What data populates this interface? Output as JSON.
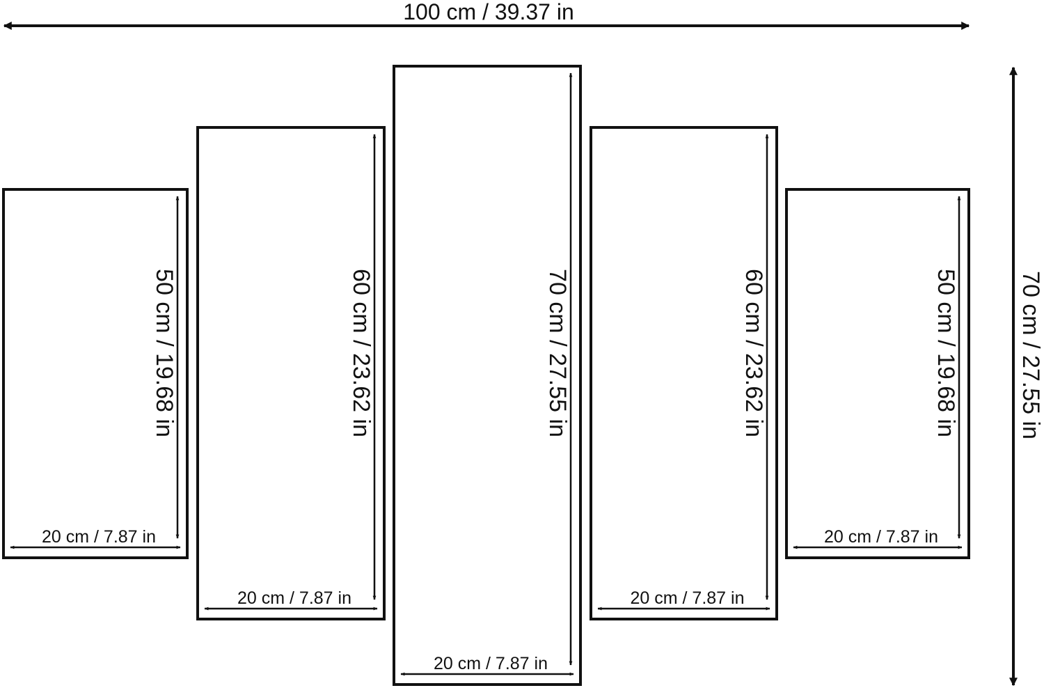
{
  "total_width": "100 cm / 39.37 in",
  "total_height": "70 cm / 27.55 in",
  "panels": [
    {
      "width_label": "20 cm / 7.87 in",
      "height_label": "50 cm / 19.68 in"
    },
    {
      "width_label": "20 cm / 7.87 in",
      "height_label": "60 cm / 23.62 in"
    },
    {
      "width_label": "20 cm / 7.87 in",
      "height_label": "70 cm / 27.55 in"
    },
    {
      "width_label": "20 cm / 7.87 in",
      "height_label": "60 cm / 23.62 in"
    },
    {
      "width_label": "20 cm / 7.87 in",
      "height_label": "50 cm / 19.68 in"
    }
  ]
}
